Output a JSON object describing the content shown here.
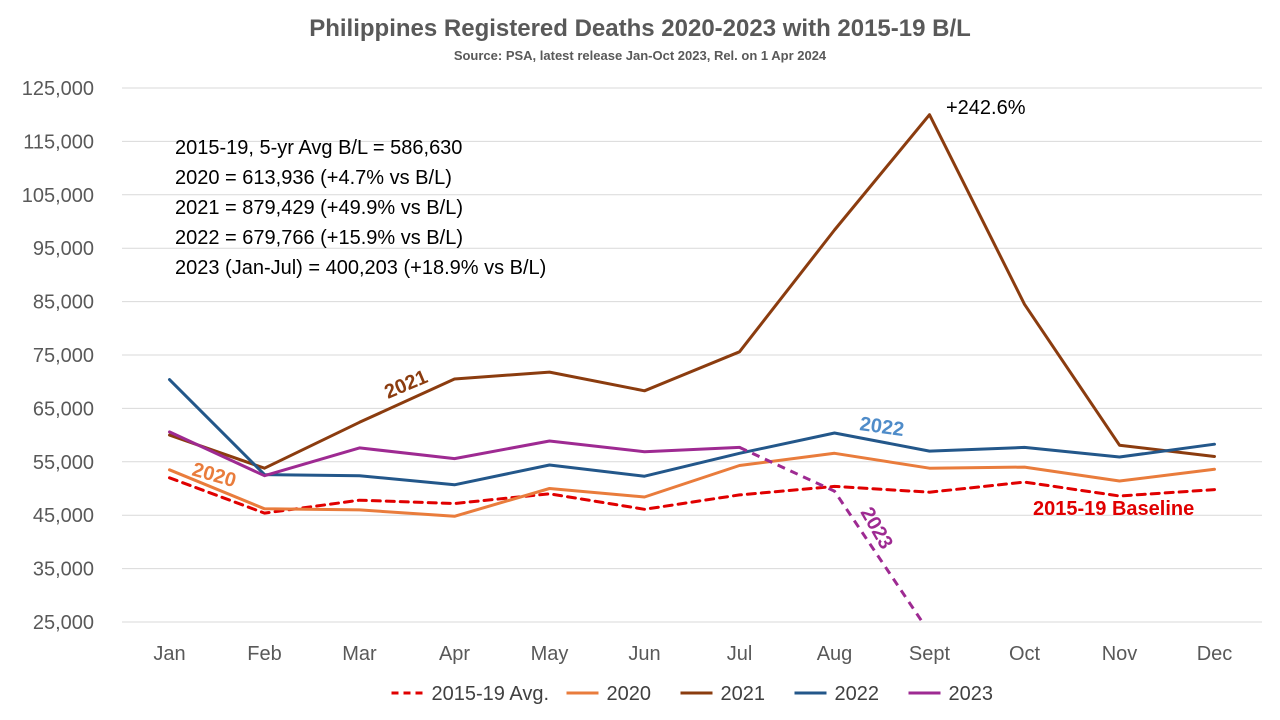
{
  "chart_data": {
    "type": "line",
    "title": "Philippines Registered Deaths 2020-2023 with 2015-19 B/L",
    "subtitle": "Source: PSA, latest release Jan-Oct 2023, Rel. on 1 Apr 2024",
    "categories": [
      "Jan",
      "Feb",
      "Mar",
      "Apr",
      "May",
      "Jun",
      "Jul",
      "Aug",
      "Sept",
      "Oct",
      "Nov",
      "Dec"
    ],
    "ylim": [
      25000,
      125000
    ],
    "yticks": [
      "25,000",
      "35,000",
      "45,000",
      "55,000",
      "65,000",
      "75,000",
      "85,000",
      "95,000",
      "105,000",
      "115,000",
      "125,000"
    ],
    "grid": true,
    "legend_position": "bottom",
    "series": [
      {
        "name": "2015-19 Avg.",
        "color": "#e00000",
        "style": "dashed",
        "values": [
          52000,
          45400,
          47800,
          47200,
          49000,
          46100,
          48800,
          50400,
          49300,
          51200,
          48600,
          49800
        ]
      },
      {
        "name": "2020",
        "color": "#e97c3c",
        "style": "solid",
        "values": [
          53500,
          46200,
          46000,
          44800,
          50000,
          48400,
          54300,
          56600,
          53800,
          54000,
          51400,
          53600
        ]
      },
      {
        "name": "2021",
        "color": "#8b3c0f",
        "style": "solid",
        "values": [
          60000,
          53800,
          62400,
          70500,
          71800,
          68300,
          75600,
          98400,
          120000,
          84500,
          58100,
          56000
        ]
      },
      {
        "name": "2022",
        "color": "#23578a",
        "style": "solid",
        "values": [
          70400,
          52600,
          52400,
          50700,
          54400,
          52300,
          56600,
          60400,
          57000,
          57700,
          55900,
          58300
        ]
      },
      {
        "name": "2023",
        "color": "#9e2a92",
        "style": "solid",
        "values": [
          60600,
          52400,
          57600,
          55600,
          58900,
          56900,
          57700,
          null,
          null,
          null,
          null,
          null
        ],
        "dashed_continuation": [
          [
            6,
            57700
          ],
          [
            7,
            49500
          ],
          [
            8,
            23000
          ]
        ]
      }
    ],
    "annotations": {
      "stats": [
        "2015-19, 5-yr Avg B/L = 586,630",
        "2020 = 613,936 (+4.7% vs B/L)",
        "2021 = 879,429 (+49.9% vs B/L)",
        "2022 = 679,766 (+15.9% vs B/L)",
        "2023 (Jan-Jul) = 400,203 (+18.9% vs B/L)"
      ],
      "peak_label": "+242.6%",
      "label_2021": "2021",
      "label_2022": "2022",
      "label_2020": "2020",
      "label_2023": "2023",
      "label_baseline": "2015-19 Baseline"
    }
  }
}
